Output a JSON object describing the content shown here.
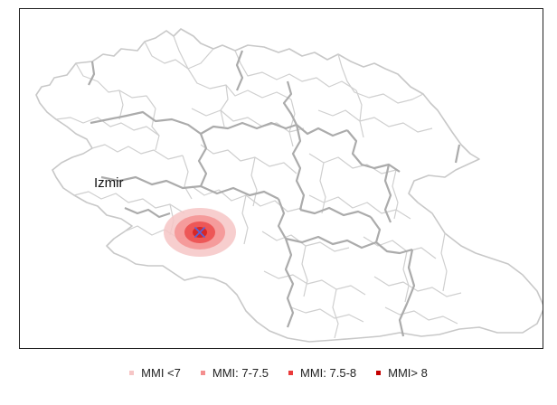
{
  "map": {
    "city_label": "Izmir",
    "epicenter_marker": "x-marker-icon"
  },
  "legend": {
    "items": [
      {
        "label": "MMI <7",
        "color": "#f6c6c6"
      },
      {
        "label": "MMI: 7-7.5",
        "color": "#f48f8f"
      },
      {
        "label": "MMI: 7.5-8",
        "color": "#ea3b3b"
      },
      {
        "label": "MMI> 8",
        "color": "#c40000"
      }
    ]
  },
  "colors": {
    "boundary_minor": "#c8c8c8",
    "boundary_major": "#a9a9a9",
    "epicenter": "#5b63d6"
  }
}
